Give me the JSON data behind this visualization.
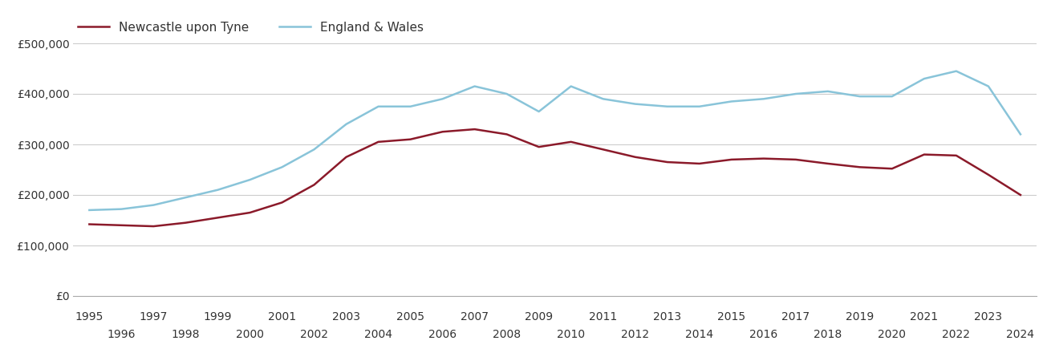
{
  "years": [
    1995,
    1996,
    1997,
    1998,
    1999,
    2000,
    2001,
    2002,
    2003,
    2004,
    2005,
    2006,
    2007,
    2008,
    2009,
    2010,
    2011,
    2012,
    2013,
    2014,
    2015,
    2016,
    2017,
    2018,
    2019,
    2020,
    2021,
    2022,
    2023,
    2024
  ],
  "newcastle": [
    142000,
    140000,
    138000,
    145000,
    155000,
    165000,
    185000,
    220000,
    275000,
    305000,
    310000,
    325000,
    330000,
    320000,
    295000,
    305000,
    290000,
    275000,
    265000,
    262000,
    270000,
    272000,
    270000,
    262000,
    255000,
    252000,
    280000,
    278000,
    240000,
    200000
  ],
  "england_wales": [
    170000,
    172000,
    180000,
    195000,
    210000,
    230000,
    255000,
    290000,
    340000,
    375000,
    375000,
    390000,
    415000,
    400000,
    365000,
    415000,
    390000,
    380000,
    375000,
    375000,
    385000,
    390000,
    400000,
    405000,
    395000,
    395000,
    430000,
    445000,
    415000,
    320000
  ],
  "newcastle_color": "#8b1a2a",
  "england_wales_color": "#89c4d9",
  "newcastle_label": "Newcastle upon Tyne",
  "england_wales_label": "England & Wales",
  "ylim": [
    0,
    500000
  ],
  "yticks": [
    0,
    100000,
    200000,
    300000,
    400000,
    500000
  ],
  "ytick_labels": [
    "£0",
    "£100,000",
    "£200,000",
    "£300,000",
    "£400,000",
    "£500,000"
  ],
  "background_color": "#ffffff",
  "grid_color": "#cccccc",
  "line_width": 1.8,
  "legend_fontsize": 11,
  "tick_fontsize": 10
}
